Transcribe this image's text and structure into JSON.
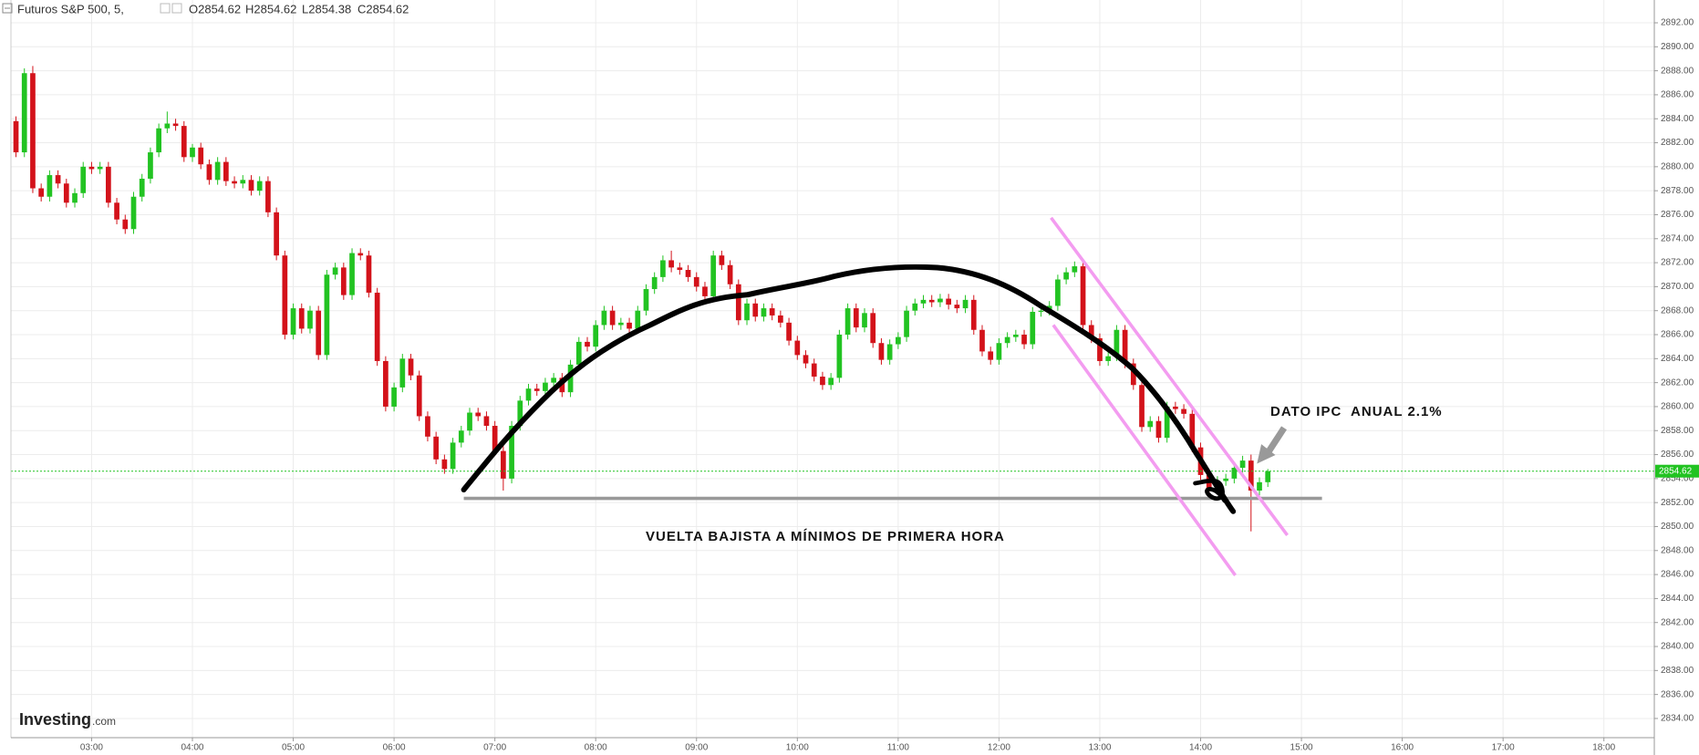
{
  "chart_data": {
    "type": "candlestick",
    "header": {
      "symbol": "Futuros S&P 500, 5,",
      "ohlc": [
        "O2854.62",
        "H2854.62",
        "L2854.38",
        "C2854.62"
      ]
    },
    "annotations": [
      "DATO IPC  ANUAL 2.1%",
      "VUELTA BAJISTA A MÍNIMOS DE PRIMERA HORA"
    ],
    "logo": [
      "Investing",
      ".com"
    ],
    "up_color": "#22c322",
    "down_color": "#d3121a",
    "grid": true,
    "last_price": 2854.62,
    "last_price_color": "#22c322",
    "x": [
      "02:15",
      "02:20",
      "02:25",
      "02:30",
      "02:35",
      "02:40",
      "02:45",
      "02:50",
      "02:55",
      "03:00",
      "03:05",
      "03:10",
      "03:15",
      "03:20",
      "03:25",
      "03:30",
      "03:35",
      "03:40",
      "03:45",
      "03:50",
      "03:55",
      "04:00",
      "04:05",
      "04:10",
      "04:15",
      "04:20",
      "04:25",
      "04:30",
      "04:35",
      "04:40",
      "04:45",
      "04:50",
      "04:55",
      "05:00",
      "05:05",
      "05:10",
      "05:15",
      "05:20",
      "05:25",
      "05:30",
      "05:35",
      "05:40",
      "05:45",
      "05:50",
      "05:55",
      "06:00",
      "06:05",
      "06:10",
      "06:15",
      "06:20",
      "06:25",
      "06:30",
      "06:35",
      "06:40",
      "06:45",
      "06:50",
      "06:55",
      "07:00",
      "07:05",
      "07:10",
      "07:15",
      "07:20",
      "07:25",
      "07:30",
      "07:35",
      "07:40",
      "07:45",
      "07:50",
      "07:55",
      "08:00",
      "08:05",
      "08:10",
      "08:15",
      "08:20",
      "08:25",
      "08:30",
      "08:35",
      "08:40",
      "08:45",
      "08:50",
      "08:55",
      "09:00",
      "09:05",
      "09:10",
      "09:15",
      "09:20",
      "09:25",
      "09:30",
      "09:35",
      "09:40",
      "09:45",
      "09:50",
      "09:55",
      "10:00",
      "10:05",
      "10:10",
      "10:15",
      "10:20",
      "10:25",
      "10:30",
      "10:35",
      "10:40",
      "10:45",
      "10:50",
      "10:55",
      "11:00",
      "11:05",
      "11:10",
      "11:15",
      "11:20",
      "11:25",
      "11:30",
      "11:35",
      "11:40",
      "11:45",
      "11:50",
      "11:55",
      "12:00",
      "12:05",
      "12:10",
      "12:15",
      "12:20",
      "12:25",
      "12:30",
      "12:35",
      "12:40",
      "12:45",
      "12:50",
      "12:55",
      "13:00",
      "13:05",
      "13:10",
      "13:15",
      "13:20",
      "13:25",
      "13:30",
      "13:35",
      "13:40",
      "13:45",
      "13:50",
      "13:55",
      "14:00",
      "14:05",
      "14:10",
      "14:15",
      "14:20",
      "14:25",
      "14:30",
      "14:35",
      "14:40"
    ],
    "open": [
      2883.8,
      2881.2,
      2887.8,
      2878.2,
      2877.5,
      2879.3,
      2878.6,
      2877.0,
      2877.8,
      2880.0,
      2879.8,
      2880.0,
      2877.0,
      2875.6,
      2874.8,
      2877.5,
      2879.0,
      2881.2,
      2883.2,
      2883.6,
      2883.4,
      2880.8,
      2881.6,
      2880.2,
      2878.9,
      2880.4,
      2878.8,
      2878.6,
      2878.9,
      2878.0,
      2878.8,
      2876.2,
      2872.6,
      2866.0,
      2868.2,
      2866.5,
      2868.0,
      2864.3,
      2871.0,
      2871.6,
      2869.3,
      2872.8,
      2872.6,
      2869.5,
      2863.8,
      2860.0,
      2861.6,
      2864.0,
      2862.6,
      2859.2,
      2857.5,
      2855.6,
      2854.8,
      2857.0,
      2858.0,
      2859.5,
      2859.2,
      2858.4,
      2856.3,
      2854.0,
      2858.4,
      2860.5,
      2861.5,
      2861.3,
      2862.0,
      2862.4,
      2861.2,
      2863.5,
      2865.4,
      2865.0,
      2866.8,
      2868.0,
      2866.8,
      2867.0,
      2866.5,
      2868.0,
      2869.8,
      2870.8,
      2872.2,
      2871.6,
      2871.4,
      2870.8,
      2870.0,
      2869.2,
      2872.6,
      2871.8,
      2870.2,
      2867.2,
      2868.6,
      2867.5,
      2868.2,
      2867.6,
      2867.0,
      2865.5,
      2864.3,
      2863.6,
      2862.5,
      2861.8,
      2862.4,
      2866.0,
      2868.2,
      2866.6,
      2867.8,
      2865.3,
      2863.9,
      2865.2,
      2865.8,
      2868.0,
      2868.6,
      2868.9,
      2868.7,
      2869.0,
      2868.5,
      2868.2,
      2868.9,
      2866.4,
      2864.6,
      2863.9,
      2865.3,
      2865.8,
      2866.0,
      2865.2,
      2867.9,
      2868.0,
      2868.4,
      2870.6,
      2871.2,
      2871.7,
      2866.8,
      2865.7,
      2863.8,
      2864.2,
      2866.4,
      2863.6,
      2861.8,
      2858.3,
      2858.8,
      2857.4,
      2860.0,
      2859.8,
      2859.4,
      2856.6,
      2854.3,
      2853.1,
      2853.8,
      2854.0,
      2854.9,
      2855.5,
      2853.0,
      2853.7
    ],
    "high": [
      2884.2,
      2888.2,
      2888.4,
      2878.6,
      2879.7,
      2879.7,
      2879.0,
      2878.2,
      2880.4,
      2880.4,
      2880.4,
      2880.4,
      2877.4,
      2876.0,
      2877.9,
      2879.4,
      2881.6,
      2883.6,
      2884.6,
      2884.0,
      2883.8,
      2881.9,
      2882.0,
      2880.6,
      2880.8,
      2880.8,
      2879.2,
      2879.3,
      2879.3,
      2879.2,
      2879.2,
      2876.6,
      2873.0,
      2868.6,
      2868.6,
      2868.4,
      2868.4,
      2871.4,
      2872.0,
      2872.0,
      2873.2,
      2873.2,
      2873.0,
      2869.9,
      2864.2,
      2862.0,
      2864.4,
      2864.4,
      2863.0,
      2859.6,
      2857.9,
      2856.0,
      2857.4,
      2858.4,
      2859.9,
      2859.9,
      2859.6,
      2858.8,
      2856.7,
      2858.8,
      2860.9,
      2861.9,
      2861.9,
      2862.4,
      2862.8,
      2862.8,
      2863.9,
      2865.8,
      2865.8,
      2867.2,
      2868.4,
      2868.4,
      2867.4,
      2867.4,
      2868.4,
      2870.2,
      2871.2,
      2872.6,
      2873.0,
      2872.0,
      2871.8,
      2871.2,
      2870.4,
      2873.0,
      2873.0,
      2872.2,
      2870.6,
      2869.0,
      2869.0,
      2868.6,
      2868.6,
      2868.0,
      2867.4,
      2865.9,
      2864.7,
      2864.0,
      2862.9,
      2862.8,
      2866.4,
      2868.6,
      2868.6,
      2868.2,
      2868.2,
      2865.7,
      2865.6,
      2866.2,
      2868.4,
      2869.0,
      2869.3,
      2869.3,
      2869.4,
      2869.4,
      2868.9,
      2869.3,
      2869.3,
      2866.8,
      2865.0,
      2865.7,
      2866.2,
      2866.4,
      2866.4,
      2868.3,
      2868.4,
      2868.8,
      2871.0,
      2871.6,
      2872.1,
      2872.1,
      2867.2,
      2866.1,
      2864.6,
      2866.8,
      2866.8,
      2864.0,
      2862.2,
      2859.2,
      2859.2,
      2860.4,
      2860.4,
      2860.2,
      2859.8,
      2857.0,
      2854.7,
      2854.2,
      2854.4,
      2855.3,
      2855.9,
      2856.0,
      2854.1,
      2854.8
    ],
    "low": [
      2880.8,
      2880.8,
      2877.8,
      2877.1,
      2877.1,
      2878.2,
      2876.6,
      2876.6,
      2877.4,
      2879.4,
      2879.4,
      2876.6,
      2875.2,
      2874.4,
      2874.4,
      2877.1,
      2878.6,
      2880.8,
      2882.8,
      2883.0,
      2880.4,
      2880.4,
      2879.8,
      2878.5,
      2878.5,
      2878.4,
      2878.2,
      2878.2,
      2877.6,
      2877.6,
      2875.8,
      2872.2,
      2865.6,
      2865.6,
      2866.1,
      2866.1,
      2863.9,
      2863.9,
      2870.6,
      2868.9,
      2868.9,
      2872.2,
      2869.1,
      2863.4,
      2859.6,
      2859.6,
      2861.2,
      2862.2,
      2858.8,
      2857.1,
      2855.2,
      2854.4,
      2854.4,
      2856.6,
      2857.6,
      2858.8,
      2858.0,
      2855.9,
      2853.0,
      2853.6,
      2858.0,
      2860.1,
      2860.9,
      2860.9,
      2861.6,
      2860.8,
      2860.8,
      2863.1,
      2864.6,
      2864.6,
      2866.4,
      2866.4,
      2866.4,
      2866.1,
      2866.1,
      2867.6,
      2869.4,
      2870.4,
      2871.2,
      2871.0,
      2870.4,
      2869.6,
      2868.8,
      2868.8,
      2871.4,
      2869.8,
      2866.8,
      2866.8,
      2867.1,
      2867.1,
      2867.2,
      2866.6,
      2865.1,
      2863.9,
      2863.2,
      2862.1,
      2861.4,
      2861.4,
      2862.0,
      2865.6,
      2866.2,
      2866.2,
      2864.9,
      2863.5,
      2863.5,
      2864.8,
      2865.4,
      2867.6,
      2868.2,
      2868.3,
      2868.3,
      2868.1,
      2867.8,
      2867.8,
      2866.0,
      2864.2,
      2863.5,
      2863.5,
      2864.9,
      2865.4,
      2864.8,
      2864.8,
      2867.5,
      2867.6,
      2868.0,
      2870.2,
      2870.8,
      2866.4,
      2865.3,
      2863.4,
      2863.4,
      2863.8,
      2863.2,
      2861.4,
      2857.9,
      2857.9,
      2857.0,
      2857.0,
      2859.4,
      2859.0,
      2856.2,
      2853.9,
      2852.7,
      2852.7,
      2853.4,
      2853.6,
      2854.5,
      2849.6,
      2852.6,
      2853.3
    ],
    "close": [
      2881.2,
      2887.8,
      2878.2,
      2877.5,
      2879.3,
      2878.6,
      2877.0,
      2877.8,
      2880.0,
      2879.8,
      2880.0,
      2877.0,
      2875.6,
      2874.8,
      2877.5,
      2879.0,
      2881.2,
      2883.2,
      2883.6,
      2883.4,
      2880.8,
      2881.6,
      2880.2,
      2878.9,
      2880.4,
      2878.8,
      2878.6,
      2878.9,
      2878.0,
      2878.8,
      2876.2,
      2872.6,
      2866.0,
      2868.2,
      2866.5,
      2868.0,
      2864.3,
      2871.0,
      2871.6,
      2869.3,
      2872.8,
      2872.6,
      2869.5,
      2863.8,
      2860.0,
      2861.6,
      2864.0,
      2862.6,
      2859.2,
      2857.5,
      2855.6,
      2854.8,
      2857.0,
      2858.0,
      2859.5,
      2859.2,
      2858.4,
      2856.3,
      2854.0,
      2858.4,
      2860.5,
      2861.5,
      2861.3,
      2862.0,
      2862.4,
      2861.2,
      2863.5,
      2865.4,
      2865.0,
      2866.8,
      2868.0,
      2866.8,
      2867.0,
      2866.5,
      2868.0,
      2869.8,
      2870.8,
      2872.2,
      2871.6,
      2871.4,
      2870.8,
      2870.0,
      2869.2,
      2872.6,
      2871.8,
      2870.2,
      2867.2,
      2868.6,
      2867.5,
      2868.2,
      2867.6,
      2867.0,
      2865.5,
      2864.3,
      2863.6,
      2862.5,
      2861.8,
      2862.4,
      2866.0,
      2868.2,
      2866.6,
      2867.8,
      2865.3,
      2863.9,
      2865.2,
      2865.8,
      2868.0,
      2868.6,
      2868.9,
      2868.7,
      2869.0,
      2868.5,
      2868.2,
      2868.9,
      2866.4,
      2864.6,
      2863.9,
      2865.3,
      2865.8,
      2866.0,
      2865.2,
      2867.9,
      2868.0,
      2868.4,
      2870.6,
      2871.2,
      2871.7,
      2866.8,
      2865.7,
      2863.8,
      2864.2,
      2866.4,
      2863.6,
      2861.8,
      2858.3,
      2858.8,
      2857.4,
      2860.0,
      2859.8,
      2859.4,
      2856.6,
      2854.3,
      2853.1,
      2853.8,
      2854.0,
      2854.9,
      2855.5,
      2853.0,
      2853.7,
      2854.62
    ],
    "xlim": [
      "02:12",
      "18:30"
    ],
    "xticks": [
      "03:00",
      "04:00",
      "05:00",
      "06:00",
      "07:00",
      "08:00",
      "09:00",
      "10:00",
      "11:00",
      "12:00",
      "13:00",
      "14:00",
      "15:00",
      "16:00",
      "17:00",
      "18:00"
    ],
    "ylim": [
      2832.4,
      2893.9
    ],
    "yticks": [
      {
        "value": 2834,
        "label": "2834.00"
      },
      {
        "value": 2836,
        "label": "2836.00"
      },
      {
        "value": 2838,
        "label": "2838.00"
      },
      {
        "value": 2840,
        "label": "2840.00"
      },
      {
        "value": 2842,
        "label": "2842.00"
      },
      {
        "value": 2844,
        "label": "2844.00"
      },
      {
        "value": 2846,
        "label": "2846.00"
      },
      {
        "value": 2848,
        "label": "2848.00"
      },
      {
        "value": 2850,
        "label": "2850.00"
      },
      {
        "value": 2852,
        "label": "2852.00"
      },
      {
        "value": 2854,
        "label": "2854.00"
      },
      {
        "value": 2856,
        "label": "2856.00"
      },
      {
        "value": 2858,
        "label": "2858.00"
      },
      {
        "value": 2860,
        "label": "2860.00"
      },
      {
        "value": 2862,
        "label": "2862.00"
      },
      {
        "value": 2864,
        "label": "2864.00"
      },
      {
        "value": 2866,
        "label": "2866.00"
      },
      {
        "value": 2868,
        "label": "2868.00"
      },
      {
        "value": 2870,
        "label": "2870.00"
      },
      {
        "value": 2872,
        "label": "2872.00"
      },
      {
        "value": 2874,
        "label": "2874.00"
      },
      {
        "value": 2876,
        "label": "2876.00"
      },
      {
        "value": 2878,
        "label": "2878.00"
      },
      {
        "value": 2880,
        "label": "2880.00"
      },
      {
        "value": 2882,
        "label": "2882.00"
      },
      {
        "value": 2884,
        "label": "2884.00"
      },
      {
        "value": 2886,
        "label": "2886.00"
      },
      {
        "value": 2888,
        "label": "2888.00"
      },
      {
        "value": 2890,
        "label": "2890.00"
      },
      {
        "value": 2892,
        "label": "2892.00"
      }
    ]
  }
}
